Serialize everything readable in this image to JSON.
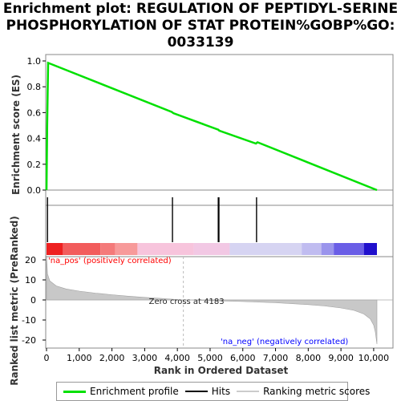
{
  "title_lines": [
    "Enrichment plot: REGULATION OF PEPTIDYL-SERINE",
    "PHOSPHORYLATION OF STAT PROTEIN%GOBP%GO:",
    "0033139"
  ],
  "colors": {
    "enrichment_line": "#00e000",
    "hits": "#000000",
    "pos_label": "#ff0000",
    "neg_label": "#0000ff",
    "metric_fill": "#c8c8c8",
    "ranking_legend": "#cccccc"
  },
  "legend": {
    "enrichment_profile": "Enrichment profile",
    "hits": "Hits",
    "ranking_metric_scores": "Ranking metric scores"
  },
  "chart_data": {
    "type": "line",
    "x_max": 10100,
    "enrichment": {
      "ylabel": "Enrichment score (ES)",
      "ylim": [
        0,
        1.0
      ],
      "yticks": [
        "0.0",
        "0.2",
        "0.4",
        "0.6",
        "0.8",
        "1.0"
      ],
      "series": [
        {
          "x": [
            0,
            20,
            50,
            3830,
            3880,
            5250,
            5280,
            6400,
            6450,
            10100
          ],
          "y": [
            0.0,
            0.5,
            0.985,
            0.605,
            0.595,
            0.468,
            0.46,
            0.36,
            0.37,
            0.0
          ]
        }
      ]
    },
    "hits": [
      30,
      3850,
      5250,
      5270,
      6420
    ],
    "heatmap_bands": [
      {
        "from": 0,
        "to": 500,
        "color": "#ee2020"
      },
      {
        "from": 500,
        "to": 1650,
        "color": "#f25c5c"
      },
      {
        "from": 1650,
        "to": 2100,
        "color": "#f47a7a"
      },
      {
        "from": 2100,
        "to": 2780,
        "color": "#f79a9a"
      },
      {
        "from": 2780,
        "to": 4500,
        "color": "#f7c4dc"
      },
      {
        "from": 4500,
        "to": 5600,
        "color": "#f2c8e4"
      },
      {
        "from": 5600,
        "to": 7800,
        "color": "#d6d4f2"
      },
      {
        "from": 7800,
        "to": 8400,
        "color": "#c0bcf0"
      },
      {
        "from": 8400,
        "to": 8780,
        "color": "#9a94ec"
      },
      {
        "from": 8780,
        "to": 9700,
        "color": "#6a5ee6"
      },
      {
        "from": 9700,
        "to": 10100,
        "color": "#2010cc"
      }
    ],
    "metric": {
      "ylabel": "Ranked list metric (PreRanked)",
      "ylim": [
        -25,
        22
      ],
      "yticks": [
        "20",
        "10",
        "0",
        "-10",
        "-20"
      ],
      "zero_cross": 4183,
      "zero_cross_label": "Zero cross at 4183",
      "pos_label": "'na_pos' (positively correlated)",
      "neg_label": "'na_neg' (negatively correlated)",
      "curve": {
        "x": [
          0,
          30,
          100,
          300,
          600,
          1000,
          1500,
          2000,
          2500,
          3000,
          3500,
          4000,
          4183,
          5000,
          6000,
          7000,
          8000,
          8500,
          9000,
          9400,
          9700,
          9900,
          10000,
          10050,
          10100
        ],
        "y": [
          22,
          13,
          9.5,
          7,
          5.5,
          4.4,
          3.4,
          2.6,
          1.9,
          1.3,
          0.8,
          0.2,
          0,
          -0.3,
          -0.8,
          -1.4,
          -2.3,
          -3.0,
          -4.0,
          -5.2,
          -7.0,
          -9.5,
          -12.5,
          -16,
          -22
        ]
      }
    },
    "xlabel": "Rank in Ordered Dataset",
    "xticks": [
      0,
      1000,
      2000,
      3000,
      4000,
      5000,
      6000,
      7000,
      8000,
      9000,
      10000
    ],
    "xtick_labels": [
      "0",
      "1,000",
      "2,000",
      "3,000",
      "4,000",
      "5,000",
      "6,000",
      "7,000",
      "8,000",
      "9,000",
      "10,000"
    ]
  }
}
